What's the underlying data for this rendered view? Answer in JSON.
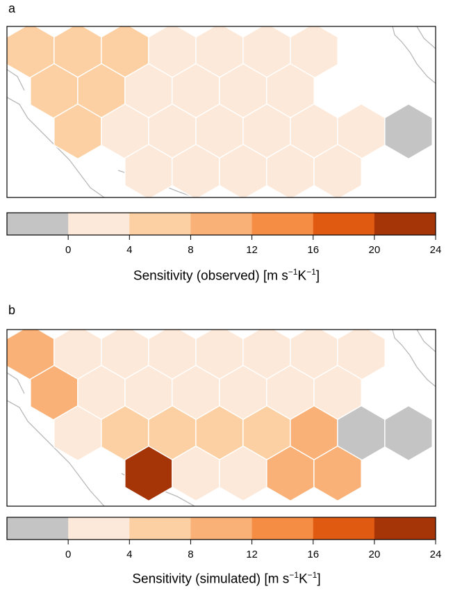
{
  "colorbar": {
    "ticks": [
      "0",
      "4",
      "8",
      "12",
      "16",
      "20",
      "24"
    ],
    "bins": [
      {
        "range": "<0",
        "color": "#c4c4c4"
      },
      {
        "range": "0-4",
        "color": "#fde9d9"
      },
      {
        "range": "4-8",
        "color": "#fcd0a2"
      },
      {
        "range": "8-12",
        "color": "#f9b177"
      },
      {
        "range": "12-16",
        "color": "#f58d45"
      },
      {
        "range": "16-20",
        "color": "#e05a12"
      },
      {
        "range": "20-24",
        "color": "#a53407"
      }
    ]
  },
  "panels": [
    {
      "letter": "a",
      "title_main": "Sensitivity (observed) [m s",
      "title_sup1": "−1",
      "title_mid": "K",
      "title_sup2": "−1",
      "title_end": "]",
      "hex_rows": [
        [
          2,
          2,
          2,
          1,
          1,
          1,
          1,
          null,
          null
        ],
        [
          2,
          2,
          1,
          1,
          1,
          1,
          null,
          null,
          null
        ],
        [
          null,
          2,
          1,
          1,
          1,
          1,
          1,
          1,
          0
        ],
        [
          null,
          null,
          1,
          1,
          1,
          1,
          1,
          null,
          null
        ]
      ]
    },
    {
      "letter": "b",
      "title_main": "Sensitivity (simulated) [m s",
      "title_sup1": "−1",
      "title_mid": "K",
      "title_sup2": "−1",
      "title_end": "]",
      "hex_rows": [
        [
          3,
          1,
          1,
          1,
          1,
          1,
          1,
          1,
          null
        ],
        [
          3,
          1,
          1,
          1,
          1,
          1,
          1,
          null,
          null
        ],
        [
          null,
          1,
          2,
          2,
          2,
          2,
          3,
          0,
          0
        ],
        [
          null,
          null,
          6,
          1,
          1,
          3,
          3,
          null,
          null
        ]
      ]
    }
  ]
}
